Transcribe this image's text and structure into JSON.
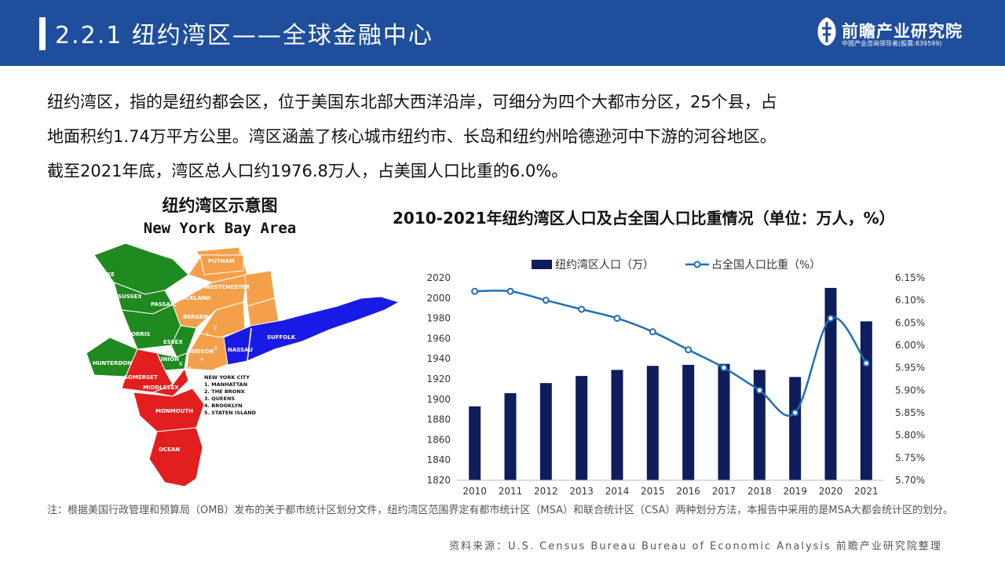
{
  "header": {
    "title": "2.2.1 纽约湾区——全球金融中心",
    "logo_name": "前瞻产业研究院",
    "logo_sub": "中国产业咨询领导者(股票:839599)"
  },
  "intro": [
    "纽约湾区，指的是纽约都会区，位于美国东北部大西洋沿岸，可细分为四个大都市分区，25个县，占",
    "地面积约1.74万平方公里。湾区涵盖了核心城市纽约市、长岛和纽约州哈德逊河中下游的河谷地区。",
    "截至2021年底，湾区总人口约1976.8万人，占美国人口比重的6.0%。"
  ],
  "map": {
    "title_cn": "纽约湾区示意图",
    "title_en": "New York Bay Area",
    "regions": [
      "PIKE",
      "SUSSEX",
      "MORRIS",
      "HUNTERDON",
      "SOMERSET",
      "MIDDLESEX",
      "MONMOUTH",
      "OCEAN",
      "PASSAIC",
      "BERGEN",
      "ESSEX",
      "HUDSON",
      "UNION",
      "PUTNAM",
      "WESTCHESTER",
      "ROCKLAND",
      "NASSAU",
      "SUFFOLK"
    ],
    "legend_title": "NEW YORK CITY",
    "legend_items": [
      "1. MANHATTAN",
      "2. THE BRONX",
      "3. QUEENS",
      "4. BROOKLYN",
      "5. STATEN ISLAND"
    ],
    "numbers": [
      "1",
      "2",
      "3",
      "4",
      "5",
      "6"
    ],
    "colors": {
      "green": "#1f8a1f",
      "red": "#e31e1e",
      "orange": "#f4a04a",
      "blue": "#1a1ae6"
    }
  },
  "chart_title": "2010-2021年纽约湾区人口及占全国人口比重情况（单位：万人，%）",
  "chart_data": {
    "type": "bar",
    "categories": [
      "2010",
      "2011",
      "2012",
      "2013",
      "2014",
      "2015",
      "2016",
      "2017",
      "2018",
      "2019",
      "2020",
      "2021"
    ],
    "series": [
      {
        "name": "纽约湾区人口（万）",
        "kind": "bar",
        "axis": "left",
        "color": "#0f1d5c",
        "values": [
          1893,
          1906,
          1916,
          1923,
          1929,
          1933,
          1934,
          1935,
          1929,
          1922,
          2010,
          1977
        ]
      },
      {
        "name": "占全国人口比重（%）",
        "kind": "line",
        "axis": "right",
        "color": "#1f6fb5",
        "values": [
          6.12,
          6.12,
          6.1,
          6.08,
          6.06,
          6.03,
          5.99,
          5.95,
          5.9,
          5.85,
          6.06,
          5.96
        ]
      }
    ],
    "ylim": [
      1820,
      2020
    ],
    "y_ticks": [
      "1820",
      "1840",
      "1860",
      "1880",
      "1900",
      "1920",
      "1940",
      "1960",
      "1980",
      "2000",
      "2020"
    ],
    "y2lim": [
      5.7,
      6.15
    ],
    "y2_ticks": [
      "5.70%",
      "5.75%",
      "5.80%",
      "5.85%",
      "5.90%",
      "5.95%",
      "6.00%",
      "6.05%",
      "6.10%",
      "6.15%"
    ],
    "legend_position": "top"
  },
  "note": "注：根据美国行政管理和预算局（OMB）发布的关于都市统计区划分文件，纽约湾区范围界定有都市统计区（MSA）和联合统计区（CSA）两种划分方法，本报告中采用的是MSA大都会统计区的划分。",
  "source": "资料来源：U.S. Census Bureau Bureau of Economic Analysis 前瞻产业研究院整理"
}
